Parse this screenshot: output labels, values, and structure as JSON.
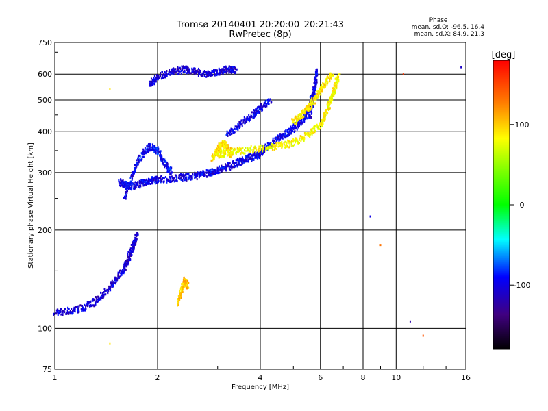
{
  "header": {
    "title": "Tromsø 20140401 20:20:00–20:21:43",
    "subtitle": "RwPretec (8p)"
  },
  "phase_box": {
    "heading": "Phase",
    "line1": "mean, sd,O: -96.5, 16.4",
    "line2": "mean, sd,X: 84.9, 21.3"
  },
  "colorbar": {
    "unit": "[deg]",
    "ticks": [
      "100",
      "0",
      "-100"
    ],
    "range": [
      -180,
      180
    ]
  },
  "chart_data": {
    "type": "scatter",
    "xlabel": "Frequency [MHz]",
    "ylabel": "Stationary phase Virtual Height [km]",
    "xscale": "log",
    "yscale": "log",
    "xlim": [
      1,
      16
    ],
    "ylim": [
      75,
      750
    ],
    "xticks": [
      "1",
      "2",
      "4",
      "6",
      "8",
      "10",
      "16"
    ],
    "yticks": [
      "75",
      "100",
      "200",
      "300",
      "400",
      "500",
      "600",
      "750"
    ],
    "grid": true,
    "o_mode_traces": [
      {
        "f": [
          1.0,
          1.1,
          1.2,
          1.3,
          1.4,
          1.5,
          1.6,
          1.65,
          1.7,
          1.75
        ],
        "h": [
          112,
          113,
          115,
          120,
          128,
          140,
          152,
          165,
          180,
          195
        ],
        "phase": -105
      },
      {
        "f": [
          1.55,
          1.6,
          1.7,
          1.8,
          1.9,
          2.0,
          2.2,
          2.4,
          2.6,
          2.8,
          3.0,
          3.2,
          3.4,
          3.6,
          3.8,
          4.0
        ],
        "h": [
          280,
          275,
          272,
          278,
          283,
          285,
          287,
          290,
          293,
          298,
          305,
          312,
          320,
          328,
          335,
          340
        ],
        "phase": -100
      },
      {
        "f": [
          1.6,
          1.7,
          1.8,
          1.9,
          2.0,
          2.1,
          2.2
        ],
        "h": [
          250,
          300,
          340,
          360,
          350,
          320,
          300
        ],
        "phase": -95
      },
      {
        "f": [
          4.0,
          4.2,
          4.5,
          4.8,
          5.0,
          5.3,
          5.5,
          5.7
        ],
        "h": [
          345,
          360,
          380,
          395,
          410,
          430,
          460,
          520
        ],
        "phase": -98
      },
      {
        "f": [
          3.2,
          3.5,
          3.8,
          4.0,
          4.3
        ],
        "h": [
          390,
          420,
          450,
          470,
          500
        ],
        "phase": -100
      },
      {
        "f": [
          1.9,
          2.0,
          2.2,
          2.4,
          2.6,
          2.8,
          3.0,
          3.2,
          3.4
        ],
        "h": [
          560,
          590,
          610,
          620,
          610,
          600,
          610,
          620,
          615
        ],
        "phase": -105
      },
      {
        "f": [
          5.6,
          5.7,
          5.8,
          5.85
        ],
        "h": [
          450,
          500,
          560,
          620
        ],
        "phase": -100
      }
    ],
    "x_mode_traces": [
      {
        "f": [
          3.0,
          3.2,
          3.5,
          4.0,
          4.5,
          5.0,
          5.5,
          6.0,
          6.2,
          6.4,
          6.6,
          6.8
        ],
        "h": [
          340,
          345,
          350,
          355,
          360,
          370,
          390,
          420,
          450,
          490,
          540,
          600
        ],
        "phase": 90
      },
      {
        "f": [
          2.9,
          3.0,
          3.1,
          3.2,
          3.3
        ],
        "h": [
          330,
          350,
          370,
          360,
          340
        ],
        "phase": 100
      },
      {
        "f": [
          2.3,
          2.35,
          2.4,
          2.45
        ],
        "h": [
          120,
          130,
          140,
          135
        ],
        "phase": 110
      },
      {
        "f": [
          5.0,
          5.3,
          5.6,
          5.9,
          6.2,
          6.5
        ],
        "h": [
          430,
          450,
          480,
          520,
          560,
          600
        ],
        "phase": 95
      }
    ],
    "isolated_points": [
      {
        "f": 1.45,
        "h": 540,
        "phase": 100
      },
      {
        "f": 1.45,
        "h": 90,
        "phase": 100
      },
      {
        "f": 8.4,
        "h": 220,
        "phase": -100
      },
      {
        "f": 9.0,
        "h": 180,
        "phase": 140
      },
      {
        "f": 11.0,
        "h": 105,
        "phase": -120
      },
      {
        "f": 12.0,
        "h": 95,
        "phase": 150
      },
      {
        "f": 15.5,
        "h": 630,
        "phase": -110
      },
      {
        "f": 10.5,
        "h": 600,
        "phase": 160
      }
    ]
  }
}
